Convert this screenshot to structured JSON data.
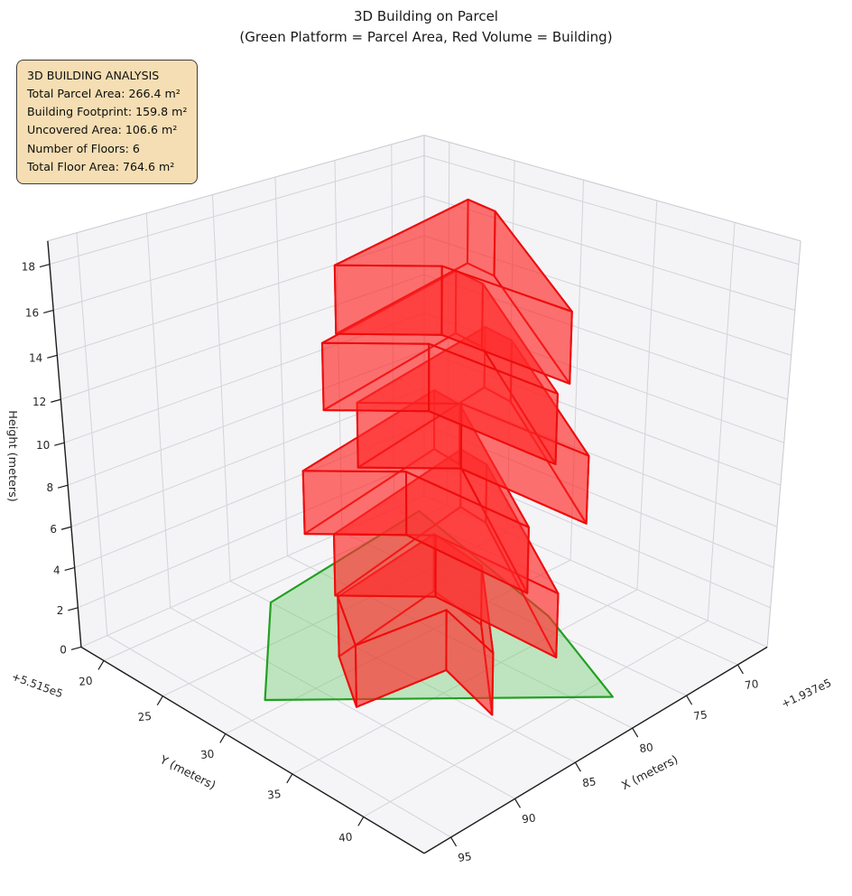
{
  "figure": {
    "title_line1": "3D Building on Parcel",
    "title_line2": "(Green Platform = Parcel Area, Red Volume = Building)"
  },
  "info_box": {
    "bg": "#f5deb3",
    "border": "#3d3d3d",
    "lines": [
      "3D BUILDING ANALYSIS",
      "Total Parcel Area: 266.4 m²",
      "Building Footprint: 159.8 m²",
      "Uncovered Area: 106.6 m²",
      "Number of Floors: 6",
      "Total Floor Area: 764.6 m²"
    ]
  },
  "axes": {
    "x": {
      "label": "X (meters)",
      "ticks": [
        70,
        75,
        80,
        85,
        90,
        95
      ],
      "offset_text": "+1.937e5",
      "range": [
        67,
        97
      ]
    },
    "y": {
      "label": "Y (meters)",
      "ticks": [
        20,
        25,
        30,
        35,
        40
      ],
      "offset_text": "+5.515e5",
      "range": [
        18,
        44
      ]
    },
    "z": {
      "label": "Height (meters)",
      "ticks": [
        0,
        2,
        4,
        6,
        8,
        10,
        12,
        14,
        16,
        18
      ],
      "range": [
        0,
        19
      ]
    }
  },
  "chart_data": {
    "type": "3d-building-extrusion",
    "title": "3D Building on Parcel",
    "subtitle": "(Green Platform = Parcel Area, Red Volume = Building)",
    "stats": {
      "total_parcel_area_m2": 266.4,
      "building_footprint_m2": 159.8,
      "uncovered_area_m2": 106.6,
      "number_of_floors": 6,
      "total_floor_area_m2": 764.6,
      "floor_height_m": 3
    },
    "parcel_polygon_xy": [
      [
        69.0,
        19.3
      ],
      [
        85.0,
        21.5
      ],
      [
        93.0,
        29.0
      ],
      [
        78.2,
        41.4
      ],
      [
        73.7,
        33.5
      ]
    ],
    "building_footprint_xy": [
      [
        71.7,
        25.4
      ],
      [
        72.2,
        27.8
      ],
      [
        81.7,
        40.4
      ],
      [
        81.5,
        31.8
      ],
      [
        85.7,
        28.0
      ]
    ],
    "ground_footprint_xy": [
      [
        76.5,
        27.0
      ],
      [
        77.5,
        31.5
      ],
      [
        84.7,
        38.2
      ],
      [
        83.0,
        33.5
      ],
      [
        89.7,
        32.8
      ],
      [
        86.5,
        28.5
      ]
    ],
    "floors": [
      {
        "name": "floor-1",
        "z0": 0,
        "z1": 3,
        "footprint": "ground",
        "dx": 0,
        "dy": 0
      },
      {
        "name": "floor-2",
        "z0": 3,
        "z1": 6,
        "footprint": "main",
        "dx": 0.8,
        "dy": 0.3
      },
      {
        "name": "floor-3",
        "z0": 6,
        "z1": 9,
        "footprint": "main",
        "dx": 2.0,
        "dy": -0.8
      },
      {
        "name": "floor-4",
        "z0": 9,
        "z1": 12,
        "footprint": "main",
        "dx": -0.6,
        "dy": 0.9
      },
      {
        "name": "floor-5",
        "z0": 12,
        "z1": 15,
        "footprint": "main",
        "dx": 1.5,
        "dy": 0.4
      },
      {
        "name": "floor-6",
        "z0": 15,
        "z1": 18,
        "footprint": "main",
        "dx": 0,
        "dy": 0
      }
    ],
    "colors": {
      "building_fill": "rgba(255,42,42,0.42)",
      "building_edge": "#ee0c0c",
      "parcel_fill": "rgba(112,205,112,0.42)",
      "parcel_edge": "#21a021",
      "pane": "#f4f4f6",
      "floor_pane": "#f5f5f7",
      "grid": "#d3d3d9",
      "pane_edge": "#cccdd2",
      "spine": "#1c1c1c",
      "text": "#262626"
    },
    "legend_position": "none",
    "grid": true,
    "view": {
      "type": "perspective",
      "azim_deg": 45,
      "elev_deg": 25
    }
  }
}
